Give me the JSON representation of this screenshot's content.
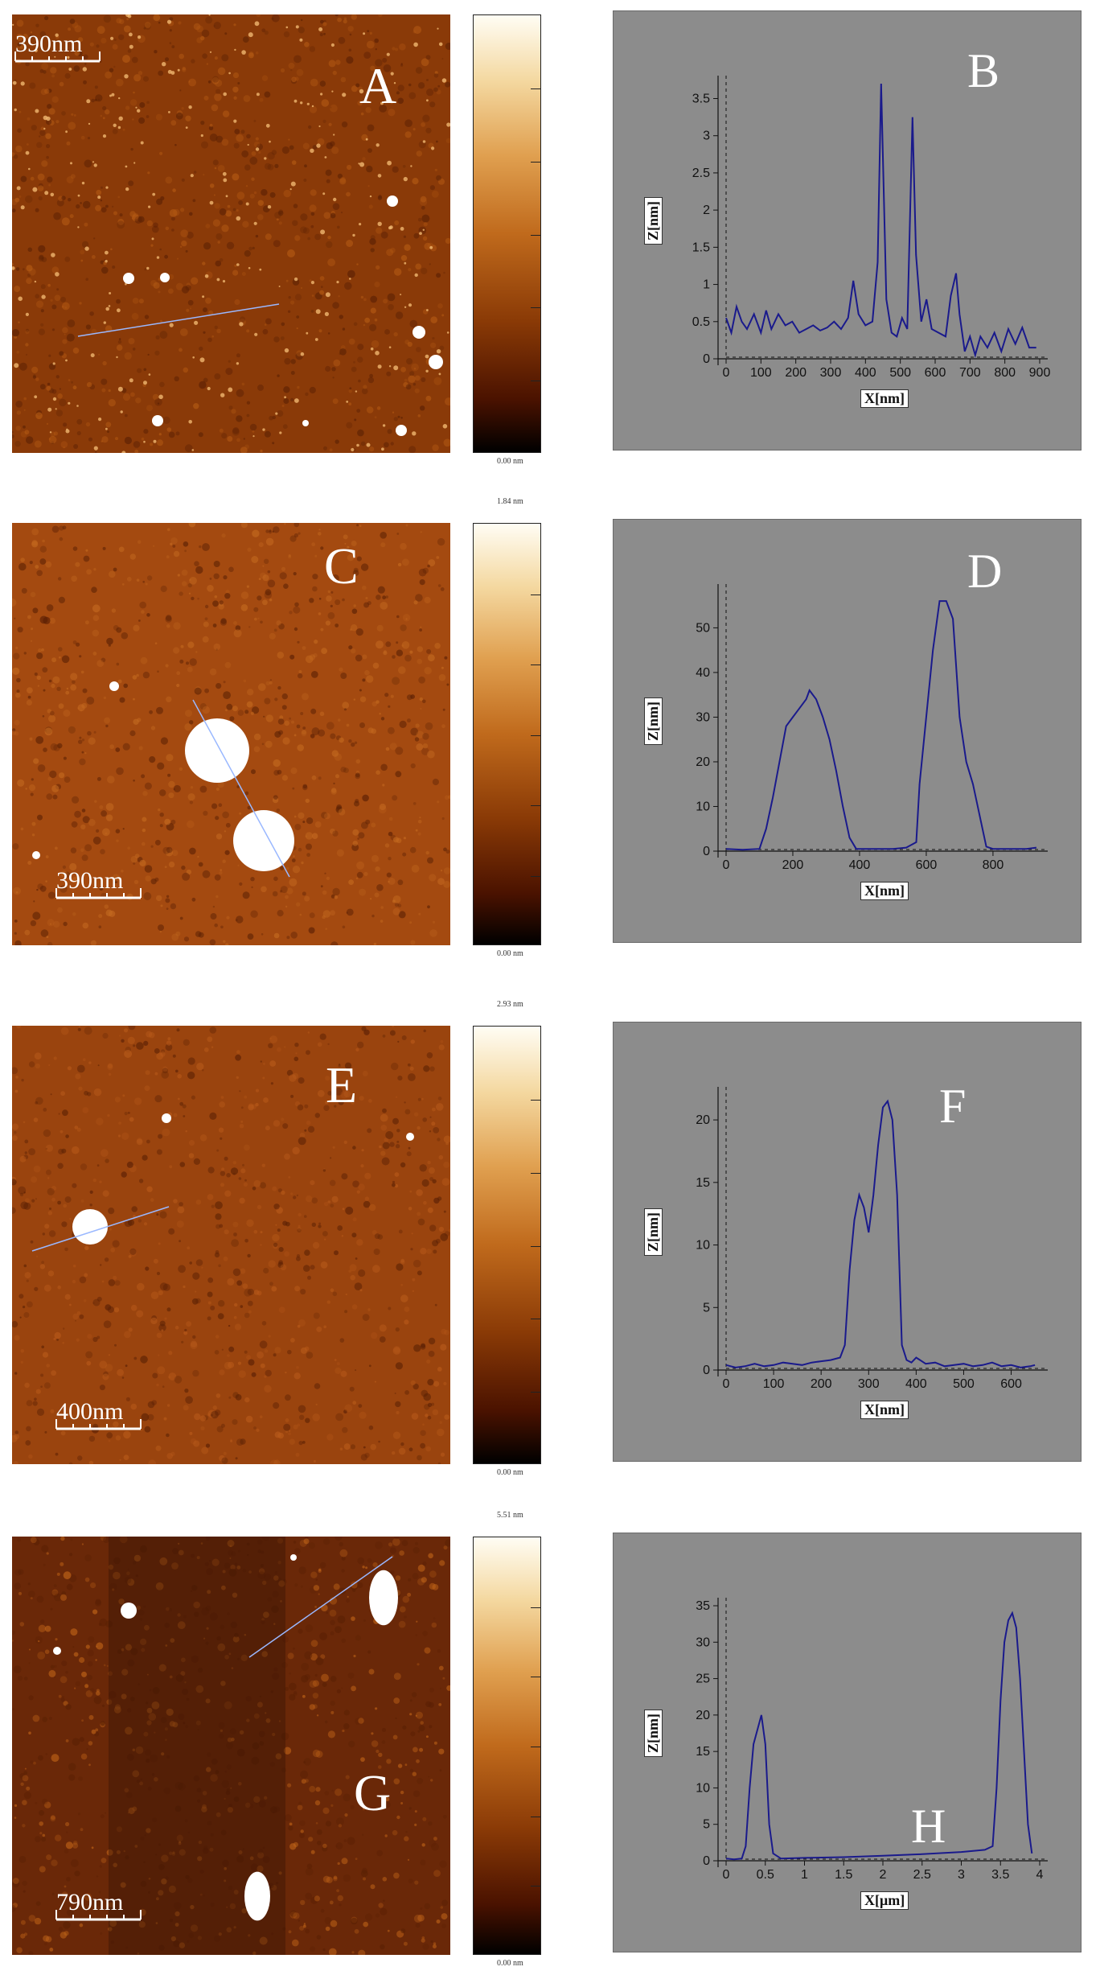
{
  "panels": [
    {
      "image_letter": "A",
      "plot_letter": "B",
      "scale_label": "390nm",
      "colorbar_top": "",
      "colorbar_bottom": "0.00 nm",
      "colors": {
        "base": "#8a3a08",
        "mid": "#b45a14"
      },
      "chart_data": {
        "type": "line",
        "xlabel": "X[nm]",
        "ylabel": "Z[nm]",
        "xlim": [
          0,
          900
        ],
        "ylim": [
          0,
          3.7
        ],
        "xticks": [
          "0",
          "100",
          "200",
          "300",
          "400",
          "500",
          "600",
          "700",
          "800",
          "900"
        ],
        "yticks": [
          "0",
          "0.5",
          "1",
          "1.5",
          "2",
          "2.5",
          "3",
          "3.5"
        ],
        "x": [
          0,
          15,
          30,
          45,
          60,
          80,
          100,
          115,
          130,
          150,
          170,
          190,
          210,
          230,
          250,
          270,
          290,
          310,
          330,
          350,
          365,
          380,
          400,
          420,
          435,
          445,
          460,
          475,
          490,
          505,
          520,
          535,
          545,
          560,
          575,
          590,
          610,
          630,
          645,
          660,
          670,
          685,
          700,
          715,
          730,
          750,
          770,
          790,
          810,
          830,
          850,
          870,
          890
        ],
        "y": [
          0.55,
          0.35,
          0.7,
          0.5,
          0.4,
          0.6,
          0.35,
          0.65,
          0.4,
          0.6,
          0.45,
          0.5,
          0.35,
          0.4,
          0.45,
          0.38,
          0.42,
          0.5,
          0.4,
          0.55,
          1.05,
          0.6,
          0.45,
          0.5,
          1.3,
          3.7,
          0.8,
          0.35,
          0.3,
          0.55,
          0.4,
          3.25,
          1.4,
          0.5,
          0.8,
          0.4,
          0.35,
          0.3,
          0.85,
          1.15,
          0.6,
          0.1,
          0.3,
          0.05,
          0.3,
          0.15,
          0.35,
          0.1,
          0.4,
          0.2,
          0.42,
          0.15,
          0.15
        ]
      }
    },
    {
      "image_letter": "C",
      "plot_letter": "D",
      "scale_label": "390nm",
      "colorbar_top": "1.84 nm",
      "colorbar_bottom": "0.00 nm",
      "colors": {
        "base": "#a44a10",
        "mid": "#c46a20"
      },
      "chart_data": {
        "type": "line",
        "xlabel": "X[nm]",
        "ylabel": "Z[nm]",
        "xlim": [
          0,
          940
        ],
        "ylim": [
          0,
          58
        ],
        "xticks": [
          "0",
          "200",
          "400",
          "600",
          "800"
        ],
        "yticks": [
          "0",
          "10",
          "20",
          "30",
          "40",
          "50"
        ],
        "x": [
          0,
          50,
          100,
          120,
          140,
          160,
          180,
          200,
          220,
          240,
          250,
          270,
          290,
          310,
          330,
          350,
          370,
          390,
          420,
          460,
          500,
          540,
          570,
          580,
          600,
          620,
          640,
          660,
          680,
          700,
          720,
          740,
          760,
          780,
          800,
          850,
          900,
          930
        ],
        "y": [
          0.5,
          0.3,
          0.5,
          5,
          12,
          20,
          28,
          30,
          32,
          34,
          36,
          34,
          30,
          25,
          18,
          10,
          3,
          0.5,
          0.5,
          0.5,
          0.5,
          0.8,
          2,
          15,
          30,
          45,
          56,
          56,
          52,
          30,
          20,
          15,
          8,
          1,
          0.5,
          0.5,
          0.5,
          0.8
        ]
      }
    },
    {
      "image_letter": "E",
      "plot_letter": "F",
      "scale_label": "400nm",
      "colorbar_top": "2.93 nm",
      "colorbar_bottom": "0.00 nm",
      "colors": {
        "base": "#9a440e",
        "mid": "#b85a1a"
      },
      "chart_data": {
        "type": "line",
        "xlabel": "X[nm]",
        "ylabel": "Z[nm]",
        "xlim": [
          0,
          660
        ],
        "ylim": [
          0,
          22
        ],
        "xticks": [
          "0",
          "100",
          "200",
          "300",
          "400",
          "500",
          "600"
        ],
        "yticks": [
          "0",
          "5",
          "10",
          "15",
          "20"
        ],
        "x": [
          0,
          20,
          40,
          60,
          80,
          100,
          120,
          140,
          160,
          180,
          200,
          220,
          240,
          250,
          260,
          270,
          280,
          290,
          300,
          310,
          320,
          330,
          340,
          350,
          360,
          370,
          380,
          390,
          400,
          420,
          440,
          460,
          480,
          500,
          520,
          540,
          560,
          580,
          600,
          620,
          640,
          650
        ],
        "y": [
          0.4,
          0.2,
          0.3,
          0.5,
          0.3,
          0.4,
          0.6,
          0.5,
          0.4,
          0.6,
          0.7,
          0.8,
          1.0,
          2,
          8,
          12,
          14,
          13,
          11,
          14,
          18,
          21,
          21.5,
          20,
          14,
          2,
          0.8,
          0.6,
          1.0,
          0.5,
          0.6,
          0.3,
          0.4,
          0.5,
          0.3,
          0.4,
          0.6,
          0.3,
          0.4,
          0.2,
          0.3,
          0.4
        ]
      }
    },
    {
      "image_letter": "G",
      "plot_letter": "H",
      "scale_label": "790nm",
      "colorbar_top": "5.51 nm",
      "colorbar_bottom": "0.00 nm",
      "colors": {
        "base": "#6a2808",
        "mid": "#c06418"
      },
      "chart_data": {
        "type": "line",
        "xlabel": "X[μm]",
        "ylabel": "Z[nm]",
        "xlim": [
          0,
          4
        ],
        "ylim": [
          0,
          35
        ],
        "xticks": [
          "0",
          "0.5",
          "1",
          "1.5",
          "2",
          "2.5",
          "3",
          "3.5",
          "4"
        ],
        "yticks": [
          "0",
          "5",
          "10",
          "15",
          "20",
          "25",
          "30",
          "35"
        ],
        "x": [
          0,
          0.1,
          0.2,
          0.25,
          0.3,
          0.35,
          0.4,
          0.45,
          0.5,
          0.55,
          0.6,
          0.7,
          1.0,
          1.5,
          2.0,
          2.5,
          3.0,
          3.3,
          3.4,
          3.45,
          3.5,
          3.55,
          3.6,
          3.65,
          3.7,
          3.75,
          3.8,
          3.85,
          3.9
        ],
        "y": [
          0.3,
          0.2,
          0.3,
          2,
          10,
          16,
          18,
          20,
          16,
          5,
          1,
          0.3,
          0.4,
          0.5,
          0.7,
          0.9,
          1.2,
          1.5,
          2,
          10,
          22,
          30,
          33,
          34,
          32,
          25,
          15,
          5,
          1
        ]
      }
    }
  ]
}
